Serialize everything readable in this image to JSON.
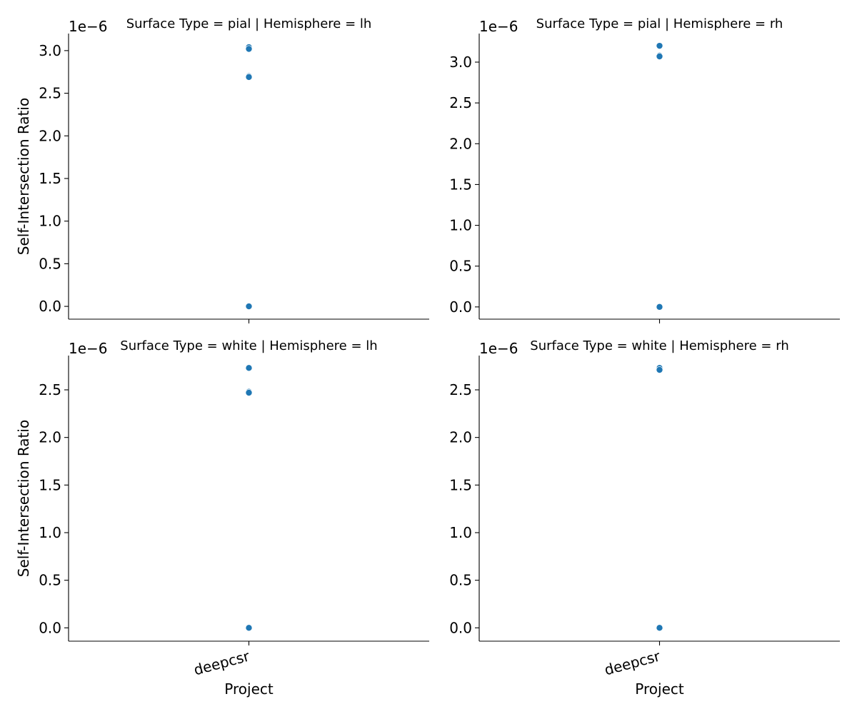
{
  "chart_data": {
    "type": "scatter",
    "x_axis_label": "Project",
    "y_axis_label": "Self-Intersection Ratio",
    "y_offset_text": "1e−6",
    "x_categories": [
      "deepcsr"
    ],
    "point_color": "#1f77b4",
    "panels": [
      {
        "title": "Surface Type = pial | Hemisphere = lh",
        "ylim": [
          -0.15,
          3.2
        ],
        "yticks": [
          0.0,
          0.5,
          1.0,
          1.5,
          2.0,
          2.5,
          3.0
        ],
        "ytick_labels": [
          "0.0",
          "0.5",
          "1.0",
          "1.5",
          "2.0",
          "2.5",
          "3.0"
        ],
        "points": [
          {
            "x": "deepcsr",
            "y": 3.04
          },
          {
            "x": "deepcsr",
            "y": 3.02
          },
          {
            "x": "deepcsr",
            "y": 2.7
          },
          {
            "x": "deepcsr",
            "y": 2.69
          },
          {
            "x": "deepcsr",
            "y": 0.0
          }
        ]
      },
      {
        "title": "Surface Type = pial | Hemisphere = rh",
        "ylim": [
          -0.15,
          3.35
        ],
        "yticks": [
          0.0,
          0.5,
          1.0,
          1.5,
          2.0,
          2.5,
          3.0
        ],
        "ytick_labels": [
          "0.0",
          "0.5",
          "1.0",
          "1.5",
          "2.0",
          "2.5",
          "3.0"
        ],
        "points": [
          {
            "x": "deepcsr",
            "y": 3.2
          },
          {
            "x": "deepcsr",
            "y": 3.08
          },
          {
            "x": "deepcsr",
            "y": 3.07
          },
          {
            "x": "deepcsr",
            "y": 0.0
          }
        ]
      },
      {
        "title": "Surface Type = white | Hemisphere = lh",
        "ylim": [
          -0.14,
          2.86
        ],
        "yticks": [
          0.0,
          0.5,
          1.0,
          1.5,
          2.0,
          2.5
        ],
        "ytick_labels": [
          "0.0",
          "0.5",
          "1.0",
          "1.5",
          "2.0",
          "2.5"
        ],
        "points": [
          {
            "x": "deepcsr",
            "y": 2.73
          },
          {
            "x": "deepcsr",
            "y": 2.48
          },
          {
            "x": "deepcsr",
            "y": 2.47
          },
          {
            "x": "deepcsr",
            "y": 0.0
          }
        ]
      },
      {
        "title": "Surface Type = white | Hemisphere = rh",
        "ylim": [
          -0.14,
          2.86
        ],
        "yticks": [
          0.0,
          0.5,
          1.0,
          1.5,
          2.0,
          2.5
        ],
        "ytick_labels": [
          "0.0",
          "0.5",
          "1.0",
          "1.5",
          "2.0",
          "2.5"
        ],
        "points": [
          {
            "x": "deepcsr",
            "y": 2.73
          },
          {
            "x": "deepcsr",
            "y": 2.71
          },
          {
            "x": "deepcsr",
            "y": 0.0
          }
        ]
      }
    ]
  }
}
